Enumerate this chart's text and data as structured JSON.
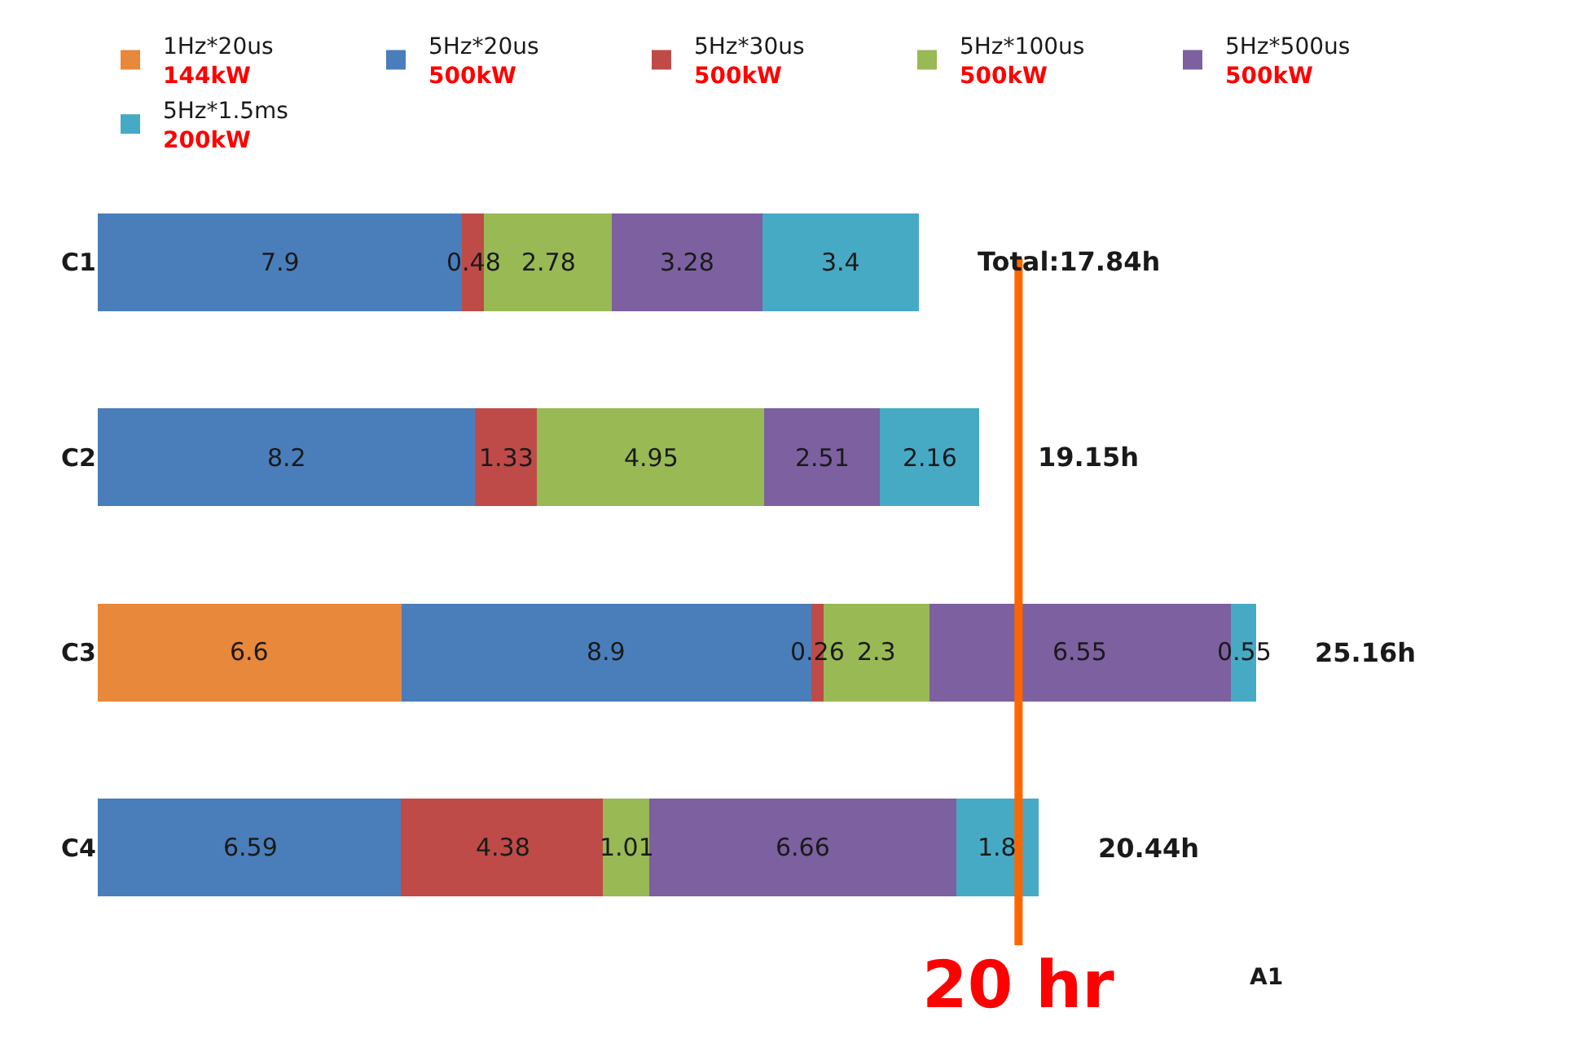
{
  "chart_data": {
    "type": "bar",
    "orientation": "horizontal",
    "stacked": true,
    "data_labels": true,
    "categories": [
      "C1",
      "C2",
      "C3",
      "C4"
    ],
    "series": [
      {
        "name": "1Hz*20us\n144kW",
        "color": "#e8883a",
        "values": [
          null,
          null,
          6.6,
          null
        ]
      },
      {
        "name": "5Hz*20us\n500kW",
        "color": "#4a7ebb",
        "values": [
          7.9,
          8.2,
          8.9,
          6.59
        ]
      },
      {
        "name": "5Hz*30us\n500kW",
        "color": "#be4b48",
        "values": [
          0.48,
          1.33,
          0.26,
          4.38
        ]
      },
      {
        "name": "5Hz*100us\n500kW",
        "color": "#98b954",
        "values": [
          2.78,
          4.95,
          2.3,
          1.01
        ]
      },
      {
        "name": "5Hz*500us\n500kW",
        "color": "#7d60a0",
        "values": [
          3.28,
          2.51,
          6.55,
          6.66
        ]
      },
      {
        "name": "5Hz*1.5ms\n200kW",
        "color": "#46aac5",
        "values": [
          3.4,
          2.16,
          0.55,
          1.8
        ]
      }
    ],
    "totals": [
      "Total:17.84h",
      "19.15h",
      "25.16h",
      "20.44h"
    ],
    "tick_labels": "y",
    "legend": "top",
    "ref_lines": [
      {
        "axis": "x",
        "value": 20,
        "label": "20 hr",
        "color": "#ff6600"
      }
    ],
    "annotations": [
      "A1"
    ]
  }
}
